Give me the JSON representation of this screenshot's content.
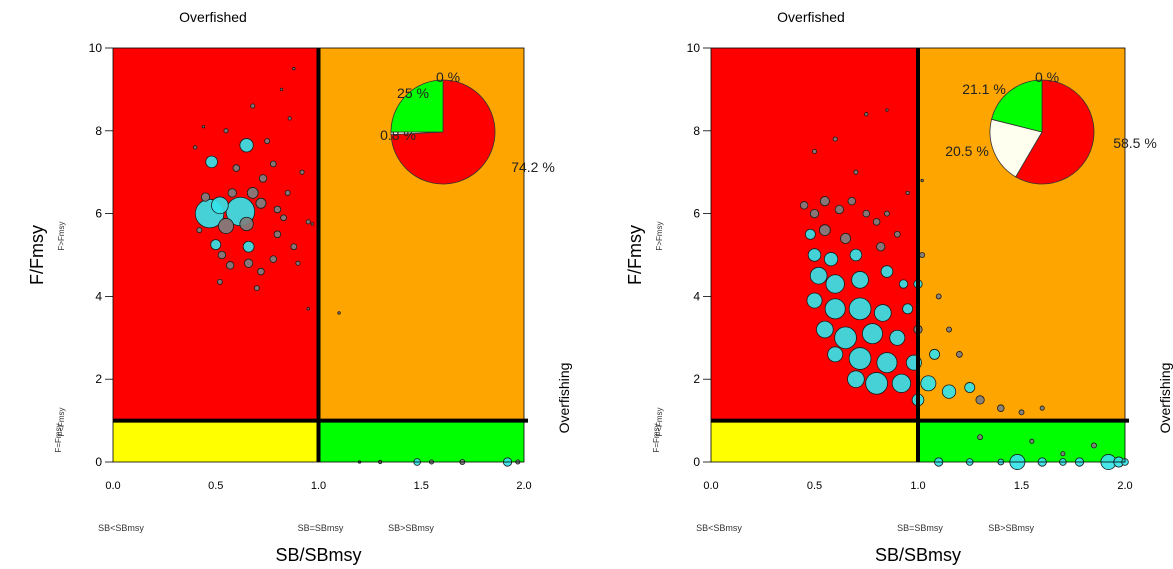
{
  "chart_data": [
    {
      "type": "scatter",
      "subtype": "kobe-plot",
      "title": "Overfished",
      "xlabel": "SB/SBmsy",
      "ylabel": "F/Fmsy",
      "xlim": [
        0,
        2
      ],
      "ylim": [
        0,
        10
      ],
      "x_ticks": [
        "0.0",
        "0.5",
        "1.0",
        "1.5",
        "2.0"
      ],
      "y_ticks": [
        "0",
        "2",
        "4",
        "6",
        "8",
        "10"
      ],
      "reference_lines": {
        "x": 1,
        "y": 1
      },
      "quadrants": {
        "top_left": {
          "color": "#ff0000"
        },
        "top_right": {
          "color": "#ffa500"
        },
        "bottom_left": {
          "color": "#ffff00"
        },
        "bottom_right": {
          "color": "#00ff00"
        }
      },
      "annotations": {
        "right_side": "Overfishing",
        "left_top": "F>Fmsy",
        "left_bottom": "F<Fmsy",
        "left_bottom_overlap": "F=Fmsy",
        "bottom_left": "SB<SBmsy",
        "bottom_mid": "SB=SBmsy",
        "bottom_right": "SB>SBmsy"
      },
      "pie": {
        "slices": [
          {
            "label": "74.2 %",
            "value": 74.2,
            "color": "#ff0000"
          },
          {
            "label": "0.8 %",
            "value": 0.8,
            "color": "#fffff0"
          },
          {
            "label": "25 %",
            "value": 25,
            "color": "#00ff00"
          },
          {
            "label": "0 %",
            "value": 0,
            "color": "#ffa500"
          }
        ]
      },
      "points": [
        {
          "x": 0.47,
          "y": 6.0,
          "s": 3.4,
          "c": "cyan"
        },
        {
          "x": 0.62,
          "y": 6.05,
          "s": 3.4,
          "c": "cyan"
        },
        {
          "x": 0.52,
          "y": 6.2,
          "s": 2.0,
          "c": "cyan"
        },
        {
          "x": 0.55,
          "y": 5.7,
          "s": 1.8,
          "c": "gray"
        },
        {
          "x": 0.65,
          "y": 5.75,
          "s": 1.6,
          "c": "gray"
        },
        {
          "x": 0.48,
          "y": 7.25,
          "s": 1.4,
          "c": "cyan"
        },
        {
          "x": 0.65,
          "y": 7.65,
          "s": 1.6,
          "c": "cyan"
        },
        {
          "x": 0.68,
          "y": 6.5,
          "s": 1.3,
          "c": "gray"
        },
        {
          "x": 0.72,
          "y": 6.25,
          "s": 1.2,
          "c": "gray"
        },
        {
          "x": 0.58,
          "y": 6.5,
          "s": 1.0,
          "c": "gray"
        },
        {
          "x": 0.45,
          "y": 6.4,
          "s": 1.0,
          "c": "gray"
        },
        {
          "x": 0.5,
          "y": 5.25,
          "s": 1.2,
          "c": "cyan"
        },
        {
          "x": 0.53,
          "y": 5.0,
          "s": 0.9,
          "c": "gray"
        },
        {
          "x": 0.57,
          "y": 4.75,
          "s": 0.9,
          "c": "gray"
        },
        {
          "x": 0.66,
          "y": 5.2,
          "s": 1.3,
          "c": "cyan"
        },
        {
          "x": 0.66,
          "y": 4.8,
          "s": 1.0,
          "c": "gray"
        },
        {
          "x": 0.72,
          "y": 4.6,
          "s": 0.8,
          "c": "gray"
        },
        {
          "x": 0.78,
          "y": 4.9,
          "s": 0.8,
          "c": "gray"
        },
        {
          "x": 0.8,
          "y": 5.5,
          "s": 0.8,
          "c": "gray"
        },
        {
          "x": 0.83,
          "y": 5.9,
          "s": 0.7,
          "c": "gray"
        },
        {
          "x": 0.88,
          "y": 5.2,
          "s": 0.7,
          "c": "gray"
        },
        {
          "x": 0.73,
          "y": 6.85,
          "s": 0.9,
          "c": "gray"
        },
        {
          "x": 0.78,
          "y": 7.2,
          "s": 0.7,
          "c": "gray"
        },
        {
          "x": 0.8,
          "y": 6.1,
          "s": 0.8,
          "c": "gray"
        },
        {
          "x": 0.85,
          "y": 6.5,
          "s": 0.6,
          "c": "gray"
        },
        {
          "x": 0.75,
          "y": 7.75,
          "s": 0.6,
          "c": "gray"
        },
        {
          "x": 0.68,
          "y": 8.6,
          "s": 0.5,
          "c": "gray"
        },
        {
          "x": 0.55,
          "y": 8.0,
          "s": 0.5,
          "c": "gray"
        },
        {
          "x": 0.6,
          "y": 7.1,
          "s": 0.8,
          "c": "gray"
        },
        {
          "x": 0.42,
          "y": 5.6,
          "s": 0.6,
          "c": "gray"
        },
        {
          "x": 0.52,
          "y": 4.35,
          "s": 0.6,
          "c": "gray"
        },
        {
          "x": 0.7,
          "y": 4.2,
          "s": 0.6,
          "c": "gray"
        },
        {
          "x": 0.9,
          "y": 4.8,
          "s": 0.5,
          "c": "gray"
        },
        {
          "x": 0.92,
          "y": 7.0,
          "s": 0.5,
          "c": "gray"
        },
        {
          "x": 0.95,
          "y": 5.8,
          "s": 0.5,
          "c": "gray"
        },
        {
          "x": 0.97,
          "y": 5.75,
          "s": 0.3,
          "c": "gray"
        },
        {
          "x": 0.95,
          "y": 3.7,
          "s": 0.3,
          "c": "gray"
        },
        {
          "x": 0.86,
          "y": 8.3,
          "s": 0.4,
          "c": "gray"
        },
        {
          "x": 0.82,
          "y": 9.0,
          "s": 0.3,
          "c": "gray"
        },
        {
          "x": 0.88,
          "y": 9.5,
          "s": 0.3,
          "c": "gray"
        },
        {
          "x": 0.4,
          "y": 7.6,
          "s": 0.4,
          "c": "gray"
        },
        {
          "x": 0.44,
          "y": 8.1,
          "s": 0.3,
          "c": "gray"
        },
        {
          "x": 1.1,
          "y": 3.6,
          "s": 0.3,
          "c": "gray"
        },
        {
          "x": 1.3,
          "y": 0.0,
          "s": 0.4,
          "c": "gray"
        },
        {
          "x": 1.48,
          "y": 0.0,
          "s": 0.8,
          "c": "cyan"
        },
        {
          "x": 1.55,
          "y": 0.0,
          "s": 0.5,
          "c": "gray"
        },
        {
          "x": 1.7,
          "y": 0.0,
          "s": 0.6,
          "c": "gray"
        },
        {
          "x": 1.92,
          "y": 0.0,
          "s": 1.0,
          "c": "cyan"
        },
        {
          "x": 1.97,
          "y": 0.0,
          "s": 0.5,
          "c": "gray"
        },
        {
          "x": 1.2,
          "y": 0.0,
          "s": 0.3,
          "c": "gray"
        }
      ]
    },
    {
      "type": "scatter",
      "subtype": "kobe-plot",
      "title": "Overfished",
      "xlabel": "SB/SBmsy",
      "ylabel": "F/Fmsy",
      "xlim": [
        0,
        2
      ],
      "ylim": [
        0,
        10
      ],
      "x_ticks": [
        "0.0",
        "0.5",
        "1.0",
        "1.5",
        "2.0"
      ],
      "y_ticks": [
        "0",
        "2",
        "4",
        "6",
        "8",
        "10"
      ],
      "reference_lines": {
        "x": 1,
        "y": 1
      },
      "quadrants": {
        "top_left": {
          "color": "#ff0000"
        },
        "top_right": {
          "color": "#ffa500"
        },
        "bottom_left": {
          "color": "#ffff00"
        },
        "bottom_right": {
          "color": "#00ff00"
        }
      },
      "annotations": {
        "right_side": "Overfishing",
        "left_top": "F>Fmsy",
        "left_bottom": "F<Fmsy",
        "left_bottom_overlap": "F=Fmsy",
        "bottom_left": "SB<SBmsy",
        "bottom_mid": "SB=SBmsy",
        "bottom_right": "SB>SBmsy"
      },
      "pie": {
        "slices": [
          {
            "label": "58.5 %",
            "value": 58.5,
            "color": "#ff0000"
          },
          {
            "label": "20.5 %",
            "value": 20.5,
            "color": "#fffff0"
          },
          {
            "label": "21.1 %",
            "value": 21.1,
            "color": "#00ff00"
          },
          {
            "label": "0 %",
            "value": 0,
            "color": "#ffa500"
          }
        ]
      },
      "points": [
        {
          "x": 0.45,
          "y": 6.2,
          "s": 0.9,
          "c": "gray"
        },
        {
          "x": 0.5,
          "y": 6.0,
          "s": 1.0,
          "c": "gray"
        },
        {
          "x": 0.55,
          "y": 6.3,
          "s": 1.1,
          "c": "gray"
        },
        {
          "x": 0.62,
          "y": 6.1,
          "s": 1.0,
          "c": "gray"
        },
        {
          "x": 0.68,
          "y": 6.3,
          "s": 0.9,
          "c": "gray"
        },
        {
          "x": 0.75,
          "y": 6.0,
          "s": 0.8,
          "c": "gray"
        },
        {
          "x": 0.48,
          "y": 5.5,
          "s": 1.2,
          "c": "cyan"
        },
        {
          "x": 0.55,
          "y": 5.6,
          "s": 1.3,
          "c": "gray"
        },
        {
          "x": 0.65,
          "y": 5.4,
          "s": 1.2,
          "c": "gray"
        },
        {
          "x": 0.8,
          "y": 5.8,
          "s": 0.8,
          "c": "gray"
        },
        {
          "x": 0.5,
          "y": 5.0,
          "s": 1.5,
          "c": "cyan"
        },
        {
          "x": 0.58,
          "y": 4.9,
          "s": 1.6,
          "c": "cyan"
        },
        {
          "x": 0.7,
          "y": 5.0,
          "s": 1.4,
          "c": "cyan"
        },
        {
          "x": 0.82,
          "y": 5.2,
          "s": 1.0,
          "c": "gray"
        },
        {
          "x": 0.52,
          "y": 4.5,
          "s": 2.0,
          "c": "cyan"
        },
        {
          "x": 0.6,
          "y": 4.3,
          "s": 2.2,
          "c": "cyan"
        },
        {
          "x": 0.72,
          "y": 4.4,
          "s": 2.0,
          "c": "cyan"
        },
        {
          "x": 0.85,
          "y": 4.6,
          "s": 1.4,
          "c": "cyan"
        },
        {
          "x": 0.93,
          "y": 4.3,
          "s": 1.0,
          "c": "cyan"
        },
        {
          "x": 0.5,
          "y": 3.9,
          "s": 1.8,
          "c": "cyan"
        },
        {
          "x": 0.6,
          "y": 3.7,
          "s": 2.4,
          "c": "cyan"
        },
        {
          "x": 0.72,
          "y": 3.7,
          "s": 2.6,
          "c": "cyan"
        },
        {
          "x": 0.83,
          "y": 3.6,
          "s": 2.0,
          "c": "cyan"
        },
        {
          "x": 0.95,
          "y": 3.7,
          "s": 1.2,
          "c": "cyan"
        },
        {
          "x": 0.55,
          "y": 3.2,
          "s": 2.0,
          "c": "cyan"
        },
        {
          "x": 0.65,
          "y": 3.0,
          "s": 2.6,
          "c": "cyan"
        },
        {
          "x": 0.78,
          "y": 3.1,
          "s": 2.4,
          "c": "cyan"
        },
        {
          "x": 0.9,
          "y": 3.0,
          "s": 1.8,
          "c": "cyan"
        },
        {
          "x": 1.0,
          "y": 3.2,
          "s": 1.0,
          "c": "gray"
        },
        {
          "x": 0.6,
          "y": 2.6,
          "s": 1.8,
          "c": "cyan"
        },
        {
          "x": 0.72,
          "y": 2.5,
          "s": 2.6,
          "c": "cyan"
        },
        {
          "x": 0.85,
          "y": 2.4,
          "s": 2.4,
          "c": "cyan"
        },
        {
          "x": 0.98,
          "y": 2.4,
          "s": 1.8,
          "c": "cyan"
        },
        {
          "x": 1.08,
          "y": 2.6,
          "s": 1.2,
          "c": "cyan"
        },
        {
          "x": 0.7,
          "y": 2.0,
          "s": 2.0,
          "c": "cyan"
        },
        {
          "x": 0.8,
          "y": 1.9,
          "s": 2.6,
          "c": "cyan"
        },
        {
          "x": 0.92,
          "y": 1.9,
          "s": 2.2,
          "c": "cyan"
        },
        {
          "x": 1.05,
          "y": 1.9,
          "s": 1.8,
          "c": "cyan"
        },
        {
          "x": 1.15,
          "y": 1.7,
          "s": 1.6,
          "c": "cyan"
        },
        {
          "x": 1.25,
          "y": 1.8,
          "s": 1.2,
          "c": "cyan"
        },
        {
          "x": 1.0,
          "y": 1.5,
          "s": 1.4,
          "c": "cyan"
        },
        {
          "x": 1.3,
          "y": 1.5,
          "s": 1.0,
          "c": "gray"
        },
        {
          "x": 1.4,
          "y": 1.3,
          "s": 0.8,
          "c": "gray"
        },
        {
          "x": 1.5,
          "y": 1.2,
          "s": 0.6,
          "c": "gray"
        },
        {
          "x": 1.6,
          "y": 1.3,
          "s": 0.5,
          "c": "gray"
        },
        {
          "x": 1.0,
          "y": 4.3,
          "s": 1.0,
          "c": "cyan"
        },
        {
          "x": 1.02,
          "y": 5.0,
          "s": 0.6,
          "c": "gray"
        },
        {
          "x": 1.1,
          "y": 4.0,
          "s": 0.6,
          "c": "gray"
        },
        {
          "x": 1.15,
          "y": 3.2,
          "s": 0.6,
          "c": "gray"
        },
        {
          "x": 1.2,
          "y": 2.6,
          "s": 0.7,
          "c": "gray"
        },
        {
          "x": 0.9,
          "y": 5.5,
          "s": 0.7,
          "c": "gray"
        },
        {
          "x": 0.85,
          "y": 6.0,
          "s": 0.6,
          "c": "gray"
        },
        {
          "x": 0.7,
          "y": 7.0,
          "s": 0.5,
          "c": "gray"
        },
        {
          "x": 0.6,
          "y": 7.8,
          "s": 0.5,
          "c": "gray"
        },
        {
          "x": 0.75,
          "y": 8.4,
          "s": 0.4,
          "c": "gray"
        },
        {
          "x": 0.85,
          "y": 8.5,
          "s": 0.3,
          "c": "gray"
        },
        {
          "x": 0.5,
          "y": 7.5,
          "s": 0.5,
          "c": "gray"
        },
        {
          "x": 0.95,
          "y": 6.5,
          "s": 0.4,
          "c": "gray"
        },
        {
          "x": 1.02,
          "y": 6.8,
          "s": 0.3,
          "c": "gray"
        },
        {
          "x": 1.1,
          "y": 0.0,
          "s": 1.0,
          "c": "cyan"
        },
        {
          "x": 1.25,
          "y": 0.0,
          "s": 0.8,
          "c": "cyan"
        },
        {
          "x": 1.4,
          "y": 0.0,
          "s": 0.7,
          "c": "cyan"
        },
        {
          "x": 1.48,
          "y": 0.0,
          "s": 1.8,
          "c": "cyan"
        },
        {
          "x": 1.6,
          "y": 0.0,
          "s": 1.0,
          "c": "cyan"
        },
        {
          "x": 1.7,
          "y": 0.0,
          "s": 0.8,
          "c": "cyan"
        },
        {
          "x": 1.78,
          "y": 0.0,
          "s": 1.0,
          "c": "cyan"
        },
        {
          "x": 1.92,
          "y": 0.0,
          "s": 1.8,
          "c": "cyan"
        },
        {
          "x": 1.97,
          "y": 0.0,
          "s": 1.2,
          "c": "cyan"
        },
        {
          "x": 2.0,
          "y": 0.0,
          "s": 0.8,
          "c": "cyan"
        },
        {
          "x": 1.85,
          "y": 0.4,
          "s": 0.6,
          "c": "gray"
        },
        {
          "x": 1.55,
          "y": 0.5,
          "s": 0.5,
          "c": "gray"
        },
        {
          "x": 1.3,
          "y": 0.6,
          "s": 0.6,
          "c": "gray"
        },
        {
          "x": 1.7,
          "y": 0.2,
          "s": 0.5,
          "c": "gray"
        }
      ]
    }
  ]
}
